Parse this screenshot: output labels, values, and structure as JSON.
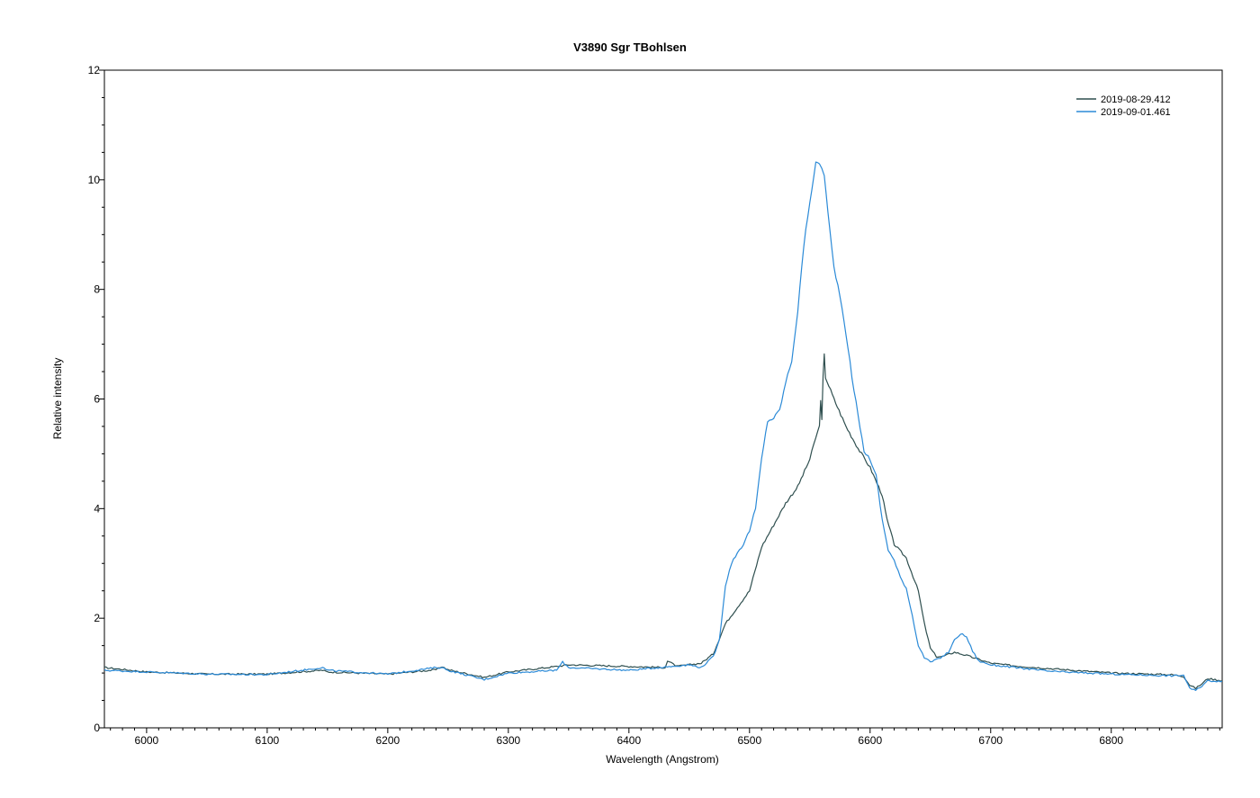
{
  "chart_data": {
    "type": "line",
    "title": "V3890 Sgr   TBohlsen",
    "xlabel": "Wavelength (Angstrom)",
    "ylabel": "Relative intensity",
    "xlim": [
      5965,
      6892
    ],
    "ylim": [
      0,
      12
    ],
    "x_ticks": [
      6000,
      6100,
      6200,
      6300,
      6400,
      6500,
      6600,
      6700,
      6800
    ],
    "x_tick_labels": [
      "6000",
      "6100",
      "6200",
      "6300",
      "6400",
      "6500",
      "6600",
      "6700",
      "6800"
    ],
    "y_ticks": [
      0,
      2,
      4,
      6,
      8,
      10,
      12
    ],
    "y_tick_labels": [
      "0",
      "2",
      "4",
      "6",
      "8",
      "10",
      "12"
    ],
    "grid": false,
    "legend_position": "top-right",
    "series": [
      {
        "name": "2019-08-29.412",
        "color": "#2f4f4f",
        "x": [
          5965,
          6000,
          6050,
          6100,
          6146,
          6150,
          6200,
          6240,
          6245,
          6250,
          6280,
          6300,
          6340,
          6350,
          6400,
          6430,
          6432,
          6440,
          6460,
          6470,
          6480,
          6490,
          6500,
          6510,
          6520,
          6530,
          6540,
          6550,
          6555,
          6558,
          6559,
          6560,
          6561,
          6562,
          6563,
          6570,
          6580,
          6590,
          6600,
          6610,
          6614,
          6620,
          6630,
          6640,
          6645,
          6650,
          6655,
          6660,
          6670,
          6680,
          6700,
          6720,
          6750,
          6800,
          6850,
          6860,
          6865,
          6870,
          6875,
          6880,
          6892
        ],
        "y": [
          1.1,
          1.02,
          0.98,
          0.98,
          1.05,
          1.02,
          0.98,
          1.06,
          1.12,
          1.06,
          0.92,
          1.02,
          1.12,
          1.15,
          1.12,
          1.1,
          1.22,
          1.12,
          1.18,
          1.35,
          1.9,
          2.2,
          2.5,
          3.3,
          3.7,
          4.1,
          4.4,
          4.9,
          5.3,
          5.5,
          6.0,
          5.6,
          6.4,
          6.8,
          6.4,
          6.0,
          5.5,
          5.1,
          4.75,
          4.25,
          3.8,
          3.35,
          3.1,
          2.5,
          1.9,
          1.45,
          1.3,
          1.3,
          1.38,
          1.32,
          1.18,
          1.13,
          1.08,
          1.0,
          0.97,
          0.94,
          0.78,
          0.72,
          0.8,
          0.9,
          0.86
        ]
      },
      {
        "name": "2019-09-01.461",
        "color": "#2b8ad7",
        "x": [
          5965,
          6000,
          6050,
          6100,
          6146,
          6150,
          6200,
          6240,
          6245,
          6250,
          6280,
          6300,
          6340,
          6345,
          6350,
          6400,
          6450,
          6460,
          6470,
          6475,
          6480,
          6485,
          6490,
          6495,
          6500,
          6505,
          6510,
          6515,
          6520,
          6525,
          6530,
          6535,
          6540,
          6545,
          6550,
          6555,
          6558,
          6560,
          6562,
          6565,
          6570,
          6575,
          6580,
          6585,
          6590,
          6595,
          6600,
          6605,
          6610,
          6615,
          6620,
          6625,
          6630,
          6635,
          6640,
          6645,
          6650,
          6655,
          6660,
          6665,
          6670,
          6675,
          6680,
          6685,
          6690,
          6700,
          6720,
          6750,
          6800,
          6850,
          6860,
          6865,
          6870,
          6875,
          6880,
          6892
        ],
        "y": [
          1.05,
          1.02,
          0.98,
          0.97,
          1.1,
          1.05,
          0.98,
          1.1,
          1.1,
          1.05,
          0.88,
          1.0,
          1.05,
          1.2,
          1.1,
          1.05,
          1.15,
          1.1,
          1.3,
          1.6,
          2.6,
          3.0,
          3.2,
          3.35,
          3.6,
          4.0,
          4.9,
          5.6,
          5.65,
          5.8,
          6.3,
          6.7,
          7.6,
          8.8,
          9.6,
          10.3,
          10.3,
          10.2,
          10.1,
          9.4,
          8.4,
          7.9,
          7.2,
          6.4,
          5.7,
          5.05,
          4.9,
          4.6,
          3.8,
          3.25,
          3.05,
          2.75,
          2.55,
          2.05,
          1.5,
          1.28,
          1.2,
          1.24,
          1.3,
          1.38,
          1.6,
          1.72,
          1.66,
          1.4,
          1.22,
          1.15,
          1.1,
          1.03,
          0.98,
          0.95,
          0.96,
          0.72,
          0.68,
          0.76,
          0.86,
          0.85
        ]
      }
    ]
  }
}
